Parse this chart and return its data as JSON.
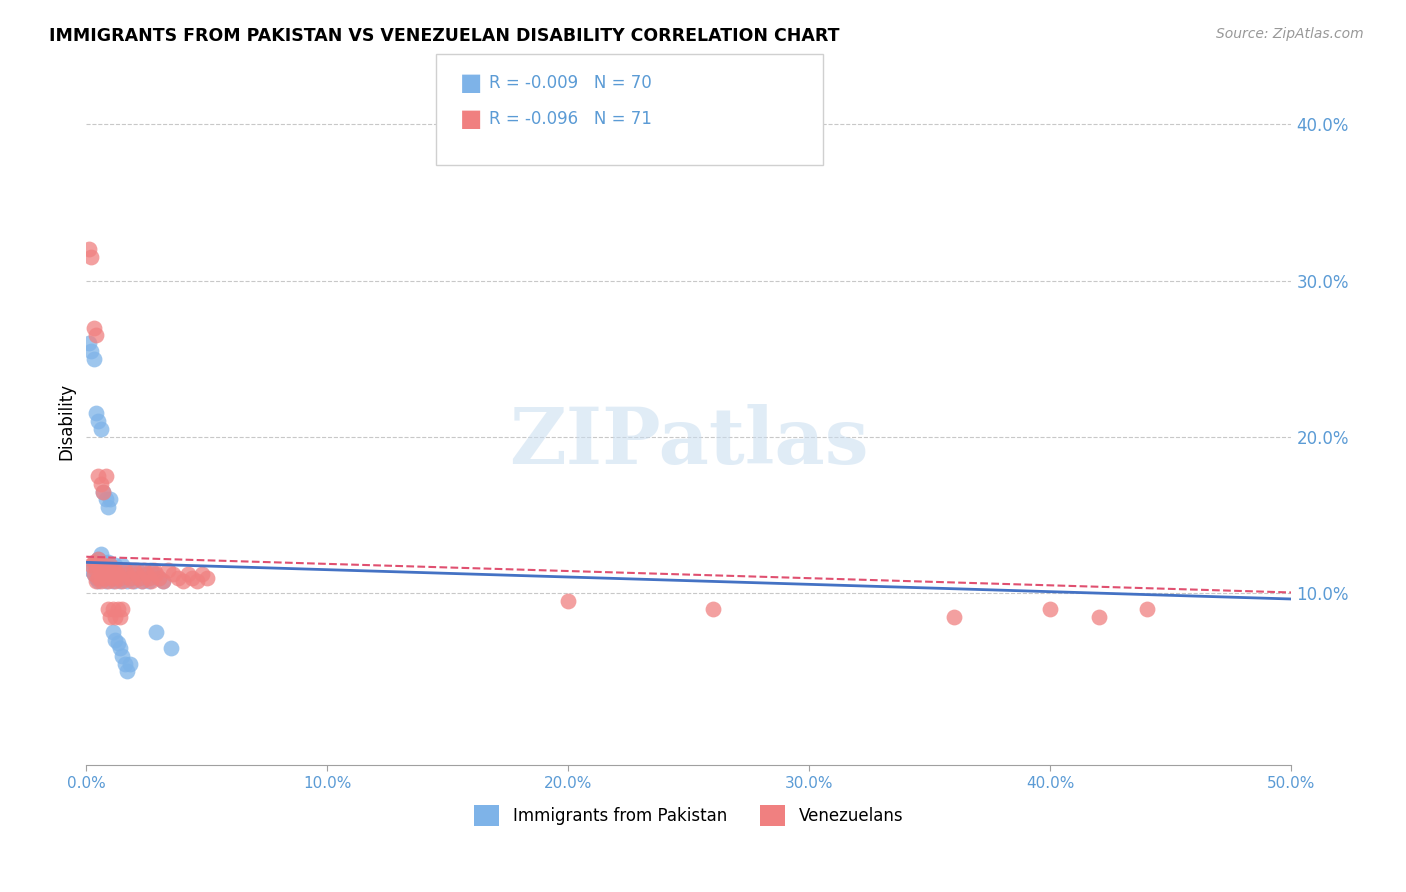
{
  "title": "IMMIGRANTS FROM PAKISTAN VS VENEZUELAN DISABILITY CORRELATION CHART",
  "source": "Source: ZipAtlas.com",
  "ylabel": "Disability",
  "xlim": [
    0.0,
    0.5
  ],
  "ylim": [
    -0.01,
    0.43
  ],
  "xticks": [
    0.0,
    0.1,
    0.2,
    0.3,
    0.4,
    0.5
  ],
  "xtick_labels": [
    "0.0%",
    "10.0%",
    "20.0%",
    "30.0%",
    "40.0%",
    "50.0%"
  ],
  "yticks": [
    0.1,
    0.2,
    0.3,
    0.4
  ],
  "ytick_labels": [
    "10.0%",
    "20.0%",
    "30.0%",
    "40.0%"
  ],
  "color_blue": "#7EB3E8",
  "color_pink": "#F08080",
  "color_blue_line": "#4472C4",
  "color_pink_line": "#E05070",
  "color_axis_text": "#5B9BD5",
  "watermark": "ZIPatlas",
  "legend1_label": "Immigrants from Pakistan",
  "legend2_label": "Venezuelans",
  "pak_x": [
    0.002,
    0.003,
    0.003,
    0.004,
    0.004,
    0.005,
    0.005,
    0.005,
    0.006,
    0.006,
    0.006,
    0.007,
    0.007,
    0.007,
    0.008,
    0.008,
    0.008,
    0.009,
    0.009,
    0.009,
    0.01,
    0.01,
    0.01,
    0.011,
    0.011,
    0.012,
    0.012,
    0.013,
    0.013,
    0.014,
    0.014,
    0.015,
    0.015,
    0.016,
    0.016,
    0.017,
    0.017,
    0.018,
    0.019,
    0.02,
    0.021,
    0.022,
    0.023,
    0.024,
    0.025,
    0.026,
    0.027,
    0.028,
    0.03,
    0.032,
    0.001,
    0.002,
    0.003,
    0.004,
    0.005,
    0.006,
    0.007,
    0.008,
    0.009,
    0.01,
    0.011,
    0.012,
    0.013,
    0.014,
    0.015,
    0.016,
    0.017,
    0.018,
    0.029,
    0.035
  ],
  "pak_y": [
    0.115,
    0.112,
    0.118,
    0.11,
    0.12,
    0.108,
    0.115,
    0.122,
    0.11,
    0.118,
    0.125,
    0.112,
    0.115,
    0.12,
    0.108,
    0.115,
    0.118,
    0.11,
    0.115,
    0.12,
    0.112,
    0.118,
    0.115,
    0.108,
    0.115,
    0.112,
    0.118,
    0.11,
    0.115,
    0.108,
    0.115,
    0.112,
    0.118,
    0.11,
    0.115,
    0.108,
    0.112,
    0.115,
    0.11,
    0.108,
    0.115,
    0.11,
    0.108,
    0.112,
    0.11,
    0.108,
    0.115,
    0.112,
    0.11,
    0.108,
    0.26,
    0.255,
    0.25,
    0.215,
    0.21,
    0.205,
    0.165,
    0.16,
    0.155,
    0.16,
    0.075,
    0.07,
    0.068,
    0.065,
    0.06,
    0.055,
    0.05,
    0.055,
    0.075,
    0.065
  ],
  "ven_x": [
    0.002,
    0.003,
    0.003,
    0.004,
    0.004,
    0.005,
    0.005,
    0.005,
    0.006,
    0.006,
    0.007,
    0.007,
    0.008,
    0.008,
    0.009,
    0.009,
    0.01,
    0.01,
    0.011,
    0.011,
    0.012,
    0.012,
    0.013,
    0.014,
    0.015,
    0.016,
    0.017,
    0.018,
    0.019,
    0.02,
    0.021,
    0.022,
    0.023,
    0.024,
    0.025,
    0.026,
    0.027,
    0.028,
    0.029,
    0.03,
    0.032,
    0.034,
    0.036,
    0.038,
    0.04,
    0.042,
    0.044,
    0.046,
    0.048,
    0.05,
    0.001,
    0.002,
    0.003,
    0.004,
    0.005,
    0.006,
    0.007,
    0.008,
    0.009,
    0.01,
    0.011,
    0.012,
    0.013,
    0.014,
    0.015,
    0.2,
    0.26,
    0.36,
    0.4,
    0.42,
    0.44
  ],
  "ven_y": [
    0.118,
    0.112,
    0.12,
    0.108,
    0.115,
    0.11,
    0.118,
    0.122,
    0.108,
    0.115,
    0.112,
    0.118,
    0.11,
    0.115,
    0.108,
    0.115,
    0.112,
    0.118,
    0.11,
    0.115,
    0.108,
    0.115,
    0.112,
    0.11,
    0.108,
    0.115,
    0.112,
    0.11,
    0.108,
    0.115,
    0.112,
    0.11,
    0.108,
    0.115,
    0.112,
    0.11,
    0.108,
    0.115,
    0.112,
    0.11,
    0.108,
    0.115,
    0.112,
    0.11,
    0.108,
    0.112,
    0.11,
    0.108,
    0.112,
    0.11,
    0.32,
    0.315,
    0.27,
    0.265,
    0.175,
    0.17,
    0.165,
    0.175,
    0.09,
    0.085,
    0.09,
    0.085,
    0.09,
    0.085,
    0.09,
    0.095,
    0.09,
    0.085,
    0.09,
    0.085,
    0.09
  ]
}
